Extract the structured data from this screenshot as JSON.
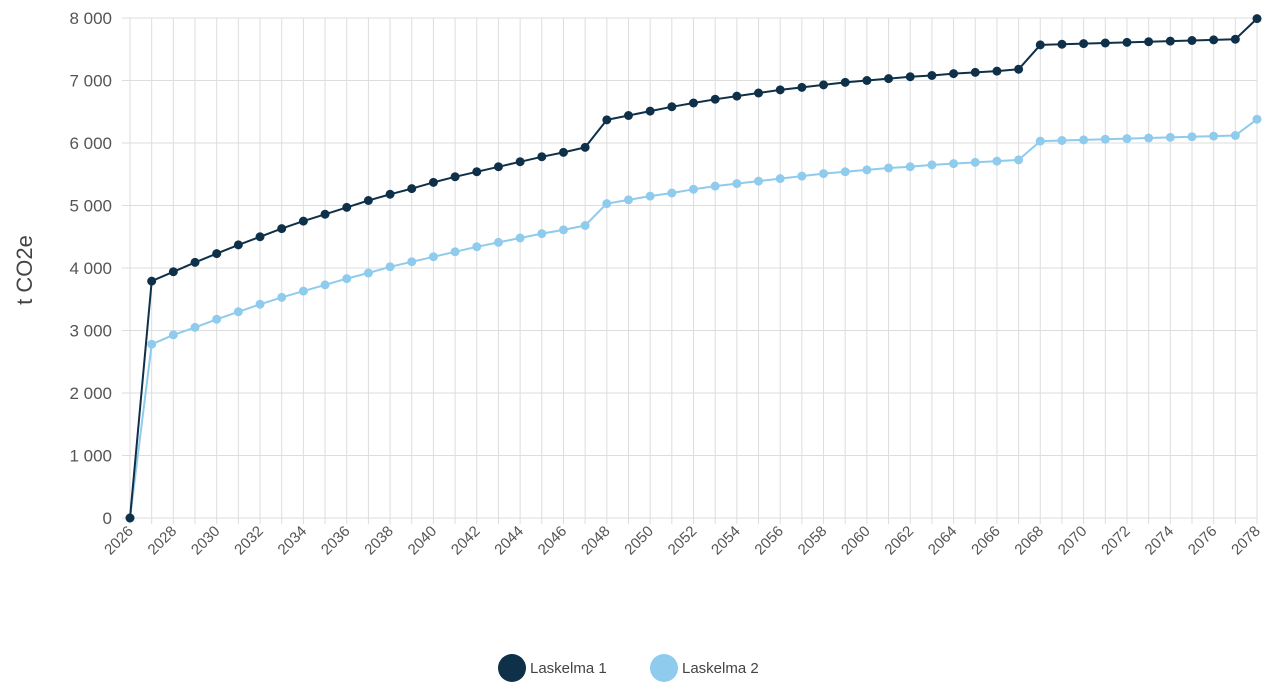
{
  "chart_data": {
    "type": "line",
    "xlabel": "",
    "ylabel": "t CO2e",
    "x": [
      2026,
      2027,
      2028,
      2029,
      2030,
      2031,
      2032,
      2033,
      2034,
      2035,
      2036,
      2037,
      2038,
      2039,
      2040,
      2041,
      2042,
      2043,
      2044,
      2045,
      2046,
      2047,
      2048,
      2049,
      2050,
      2051,
      2052,
      2053,
      2054,
      2055,
      2056,
      2057,
      2058,
      2059,
      2060,
      2061,
      2062,
      2063,
      2064,
      2065,
      2066,
      2067,
      2068,
      2069,
      2070,
      2071,
      2072,
      2073,
      2074,
      2075,
      2076,
      2077,
      2078
    ],
    "xticks": [
      2026,
      2028,
      2030,
      2032,
      2034,
      2036,
      2038,
      2040,
      2042,
      2044,
      2046,
      2048,
      2050,
      2052,
      2054,
      2056,
      2058,
      2060,
      2062,
      2064,
      2066,
      2068,
      2070,
      2072,
      2074,
      2076,
      2078
    ],
    "xlim": [
      2026,
      2078
    ],
    "ylim": [
      0,
      8000
    ],
    "yticks": [
      0,
      1000,
      2000,
      3000,
      4000,
      5000,
      6000,
      7000,
      8000
    ],
    "ytick_labels": [
      "0",
      "1 000",
      "2 000",
      "3 000",
      "4 000",
      "5 000",
      "6 000",
      "7 000",
      "8 000"
    ],
    "grid": true,
    "legend_position": "bottom-center",
    "series": [
      {
        "name": "Laskelma 1",
        "color": "#0f3049",
        "values": [
          0,
          3790,
          3940,
          4090,
          4230,
          4370,
          4500,
          4630,
          4750,
          4860,
          4970,
          5080,
          5180,
          5270,
          5370,
          5460,
          5540,
          5620,
          5700,
          5780,
          5850,
          5930,
          6370,
          6440,
          6510,
          6580,
          6640,
          6700,
          6750,
          6800,
          6850,
          6890,
          6930,
          6970,
          7000,
          7030,
          7060,
          7080,
          7110,
          7130,
          7150,
          7180,
          7570,
          7580,
          7590,
          7600,
          7610,
          7620,
          7630,
          7640,
          7650,
          7660,
          7990
        ]
      },
      {
        "name": "Laskelma 2",
        "color": "#8ecbed",
        "values": [
          0,
          2780,
          2930,
          3050,
          3180,
          3300,
          3420,
          3530,
          3630,
          3730,
          3830,
          3920,
          4020,
          4100,
          4180,
          4260,
          4340,
          4410,
          4480,
          4550,
          4610,
          4680,
          5030,
          5090,
          5150,
          5200,
          5260,
          5310,
          5350,
          5390,
          5430,
          5470,
          5510,
          5540,
          5570,
          5600,
          5620,
          5650,
          5670,
          5690,
          5710,
          5730,
          6030,
          6040,
          6050,
          6060,
          6070,
          6080,
          6090,
          6100,
          6110,
          6120,
          6380
        ]
      }
    ]
  }
}
